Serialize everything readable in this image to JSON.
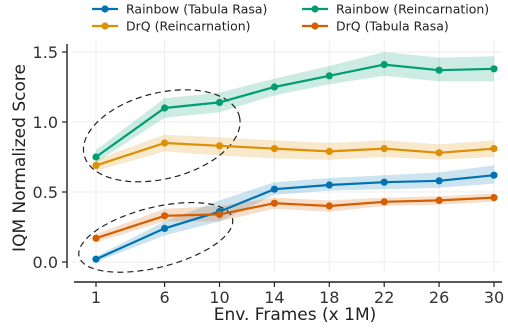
{
  "chart_data": {
    "type": "line",
    "xlabel": "Env. Frames (x 1M)",
    "ylabel": "IQM Normalized Score",
    "x": [
      1,
      6,
      10,
      14,
      18,
      22,
      26,
      30
    ],
    "x_ticks": [
      "1",
      "6",
      "10",
      "14",
      "18",
      "22",
      "26",
      "30"
    ],
    "y_ticks": [
      "0.0",
      "0.5",
      "1.0",
      "1.5"
    ],
    "ylim": [
      -0.05,
      1.6
    ],
    "grid": true,
    "legend_placement": "top, two columns",
    "series": [
      {
        "name": "Rainbow (Tabula Rasa)",
        "color": "#0173b2",
        "values": [
          0.02,
          0.24,
          0.36,
          0.52,
          0.55,
          0.57,
          0.58,
          0.62
        ],
        "lower": [
          0.0,
          0.19,
          0.29,
          0.48,
          0.51,
          0.52,
          0.53,
          0.56
        ],
        "upper": [
          0.04,
          0.29,
          0.44,
          0.57,
          0.6,
          0.62,
          0.64,
          0.69
        ]
      },
      {
        "name": "Rainbow (Reincarnation)",
        "color": "#029e73",
        "values": [
          0.75,
          1.1,
          1.14,
          1.25,
          1.33,
          1.41,
          1.37,
          1.38
        ],
        "lower": [
          0.71,
          1.03,
          1.07,
          1.19,
          1.27,
          1.33,
          1.29,
          1.29
        ],
        "upper": [
          0.8,
          1.17,
          1.21,
          1.31,
          1.4,
          1.5,
          1.46,
          1.47
        ]
      },
      {
        "name": "DrQ (Reincarnation)",
        "color": "#de8f05",
        "values": [
          0.69,
          0.85,
          0.83,
          0.81,
          0.79,
          0.81,
          0.78,
          0.81
        ],
        "lower": [
          0.65,
          0.79,
          0.76,
          0.74,
          0.73,
          0.75,
          0.73,
          0.75
        ],
        "upper": [
          0.73,
          0.91,
          0.89,
          0.87,
          0.85,
          0.87,
          0.84,
          0.87
        ]
      },
      {
        "name": "DrQ (Tabula Rasa)",
        "color": "#d55e00",
        "values": [
          0.17,
          0.33,
          0.34,
          0.42,
          0.4,
          0.43,
          0.44,
          0.46
        ],
        "lower": [
          0.14,
          0.29,
          0.29,
          0.38,
          0.36,
          0.4,
          0.41,
          0.43
        ],
        "upper": [
          0.2,
          0.38,
          0.4,
          0.46,
          0.44,
          0.46,
          0.47,
          0.49
        ]
      }
    ],
    "annotations": [
      {
        "shape": "dashed-ellipse",
        "around": "Rainbow (Reincarnation) and DrQ (Reincarnation) at x = 1–10"
      },
      {
        "shape": "dashed-ellipse",
        "around": "Rainbow (Tabula Rasa) and DrQ (Tabula Rasa) at x = 1–10"
      }
    ]
  },
  "legend": [
    {
      "label": "Rainbow (Tabula Rasa)",
      "color": "#0173b2"
    },
    {
      "label": "Rainbow (Reincarnation)",
      "color": "#029e73"
    },
    {
      "label": "DrQ (Reincarnation)",
      "color": "#de8f05"
    },
    {
      "label": "DrQ (Tabula Rasa)",
      "color": "#d55e00"
    }
  ]
}
